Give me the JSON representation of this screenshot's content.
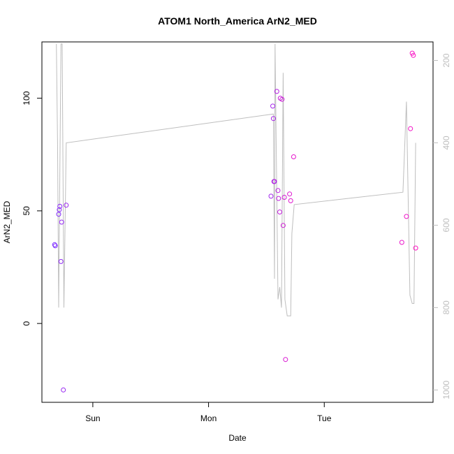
{
  "chart_data": {
    "type": "scatter",
    "title": "ATOM1 North_America ArN2_MED",
    "xlabel": "Date",
    "ylabel": "ArN2_MED",
    "x_tick_labels": [
      "Sun",
      "Mon",
      "Tue"
    ],
    "x_ticks_days": [
      1,
      2,
      3
    ],
    "xlim_days": [
      0.56,
      3.94
    ],
    "ylim": [
      -35,
      125
    ],
    "y_ticks": [
      0,
      50,
      100
    ],
    "y_tick_labels": [
      "0",
      "50",
      "100"
    ],
    "y2_ticks": [
      200,
      400,
      600,
      800,
      1000
    ],
    "y2_tick_labels": [
      "200",
      "400",
      "600",
      "800",
      "1000"
    ],
    "y2lim": [
      1030,
      155
    ],
    "y2_reversed": true,
    "colors": {
      "line": "#bebebe",
      "points_start": "#7a2cff",
      "points_end": "#ff10c0",
      "axis": "#000000"
    },
    "points": [
      {
        "day": 0.67,
        "value": 35.0
      },
      {
        "day": 0.675,
        "value": 34.5
      },
      {
        "day": 0.705,
        "value": 48.5
      },
      {
        "day": 0.71,
        "value": 50.5
      },
      {
        "day": 0.715,
        "value": 52.0
      },
      {
        "day": 0.725,
        "value": 27.5
      },
      {
        "day": 0.73,
        "value": 45.0
      },
      {
        "day": 0.745,
        "value": -29.5
      },
      {
        "day": 0.77,
        "value": 52.5
      },
      {
        "day": 2.54,
        "value": 56.5
      },
      {
        "day": 2.555,
        "value": 96.5
      },
      {
        "day": 2.56,
        "value": 91.0
      },
      {
        "day": 2.565,
        "value": 63.0
      },
      {
        "day": 2.57,
        "value": 63.0
      },
      {
        "day": 2.59,
        "value": 103.0
      },
      {
        "day": 2.6,
        "value": 59.0
      },
      {
        "day": 2.605,
        "value": 55.5
      },
      {
        "day": 2.615,
        "value": 49.5
      },
      {
        "day": 2.62,
        "value": 100.0
      },
      {
        "day": 2.635,
        "value": 99.5
      },
      {
        "day": 2.645,
        "value": 43.5
      },
      {
        "day": 2.655,
        "value": 56.0
      },
      {
        "day": 2.665,
        "value": -16.0
      },
      {
        "day": 2.7,
        "value": 57.5
      },
      {
        "day": 2.71,
        "value": 54.5
      },
      {
        "day": 2.735,
        "value": 74.0
      },
      {
        "day": 3.67,
        "value": 36.0
      },
      {
        "day": 3.71,
        "value": 47.5
      },
      {
        "day": 3.745,
        "value": 86.5
      },
      {
        "day": 3.76,
        "value": 120.0
      },
      {
        "day": 3.77,
        "value": 119.0
      },
      {
        "day": 3.79,
        "value": 33.5
      }
    ],
    "line_series": {
      "axis": "right",
      "days": [
        0.685,
        0.695,
        0.705,
        0.725,
        0.735,
        0.75,
        0.77,
        2.56,
        2.57,
        2.575,
        2.6,
        2.615,
        2.63,
        2.645,
        2.66,
        2.68,
        2.71,
        2.72,
        2.74,
        3.68,
        3.71,
        3.74,
        3.76,
        3.775,
        3.79
      ],
      "values": [
        160,
        400,
        800,
        160,
        160,
        800,
        400,
        330,
        730,
        160,
        780,
        750,
        800,
        230,
        780,
        820,
        820,
        620,
        550,
        520,
        300,
        770,
        790,
        790,
        400
      ]
    }
  }
}
